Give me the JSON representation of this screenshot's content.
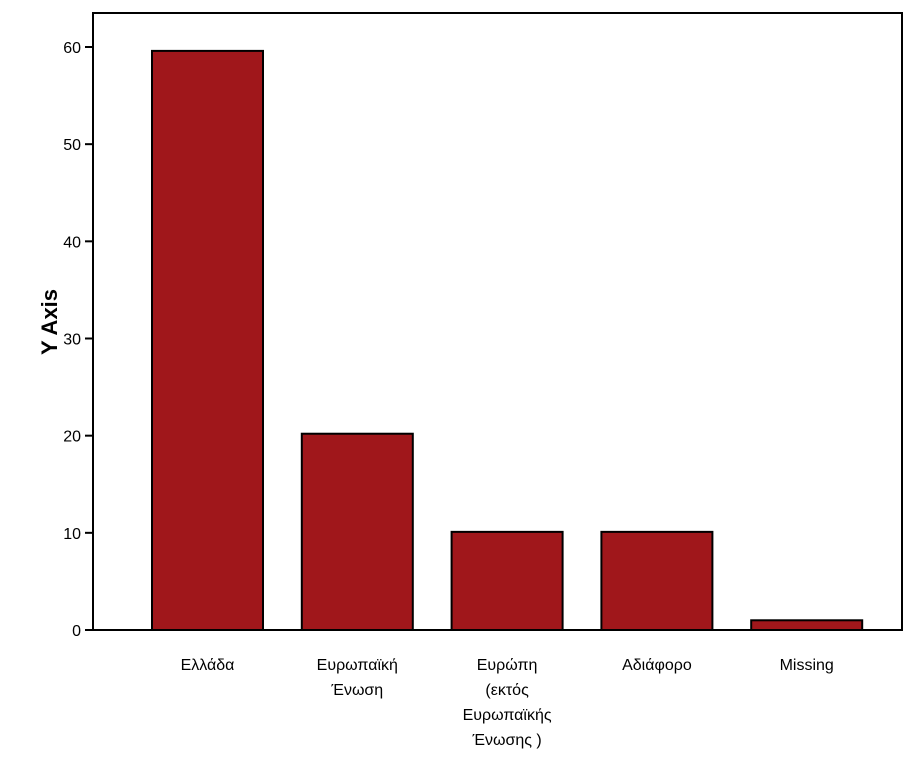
{
  "chart_data": {
    "type": "bar",
    "categories": [
      [
        "Ελλάδα"
      ],
      [
        "Ευρωπαϊκή",
        "Ένωση"
      ],
      [
        "Ευρώπη",
        "(εκτός",
        "Ευρωπαϊκής",
        "Ένωσης )"
      ],
      [
        "Αδιάφορο"
      ],
      [
        "Missing"
      ]
    ],
    "values": [
      59.6,
      20.2,
      10.1,
      10.1,
      1.0
    ],
    "ylabel": "Y Axis",
    "xlabel": "",
    "ylim": [
      0,
      60
    ],
    "yticks": [
      0,
      10,
      20,
      30,
      40,
      50,
      60
    ],
    "bar_color": "#a0171b",
    "grid": false,
    "legend": "none"
  }
}
